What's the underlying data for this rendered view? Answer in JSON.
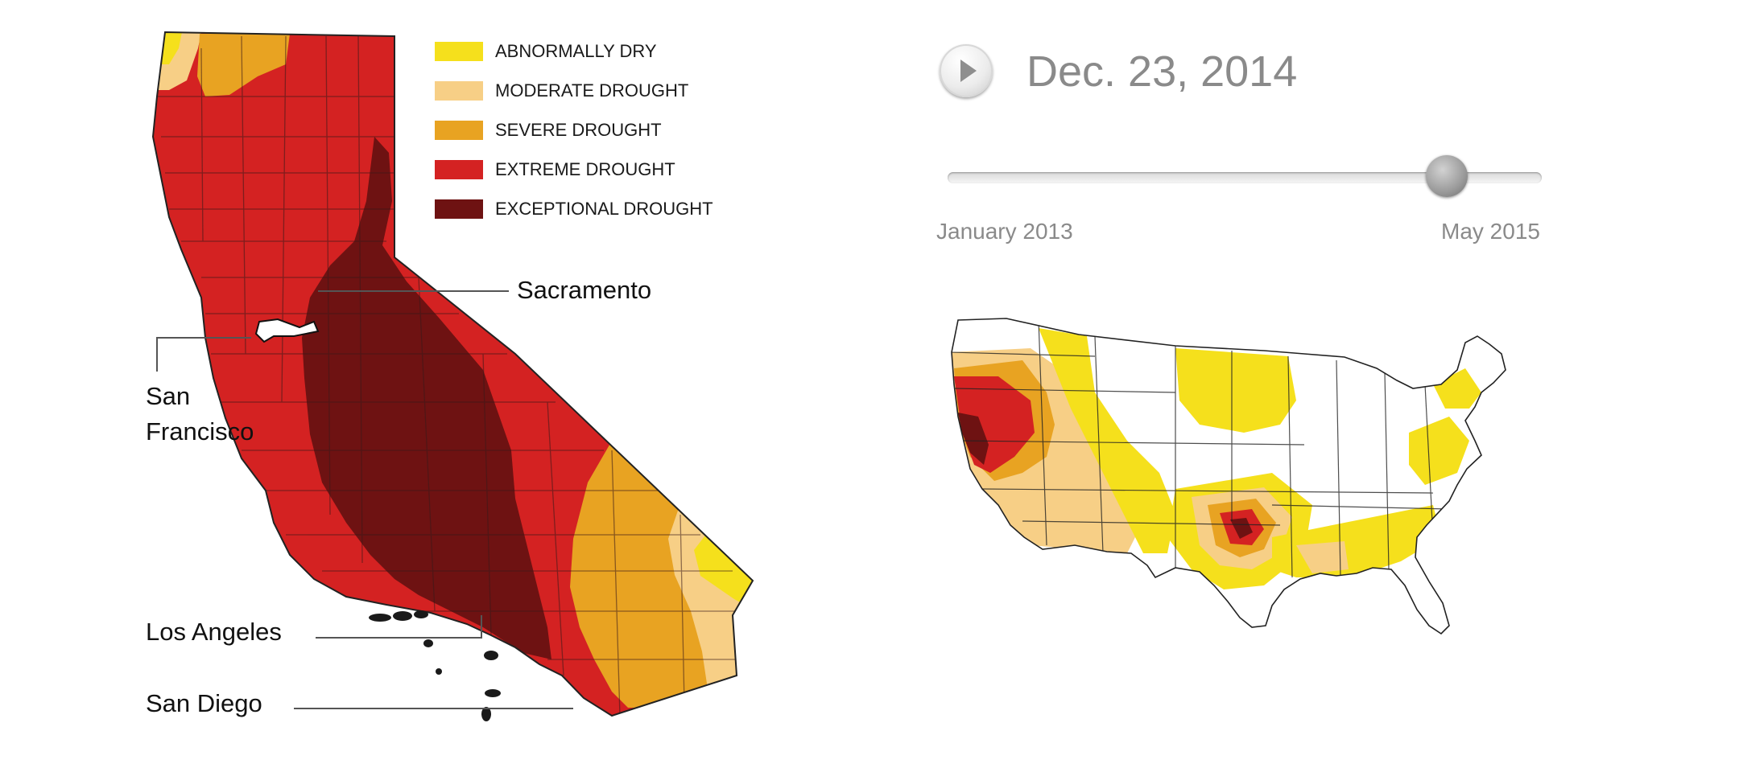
{
  "legend": [
    {
      "label": "ABNORMALLY DRY",
      "color": "#f5e01c"
    },
    {
      "label": "MODERATE DROUGHT",
      "color": "#f7cf86"
    },
    {
      "label": "SEVERE DROUGHT",
      "color": "#e8a322"
    },
    {
      "label": "EXTREME DROUGHT",
      "color": "#d42222"
    },
    {
      "label": "EXCEPTIONAL DROUGHT",
      "color": "#6e1212"
    }
  ],
  "cities": {
    "sacramento": "Sacramento",
    "san_francisco_line1": "San",
    "san_francisco_line2": "Francisco",
    "los_angeles": "Los Angeles",
    "san_diego": "San Diego"
  },
  "timeline": {
    "current_date": "Dec. 23, 2014",
    "start_label": "January 2013",
    "end_label": "May 2015",
    "position": 0.84,
    "play_icon": "play-icon"
  }
}
